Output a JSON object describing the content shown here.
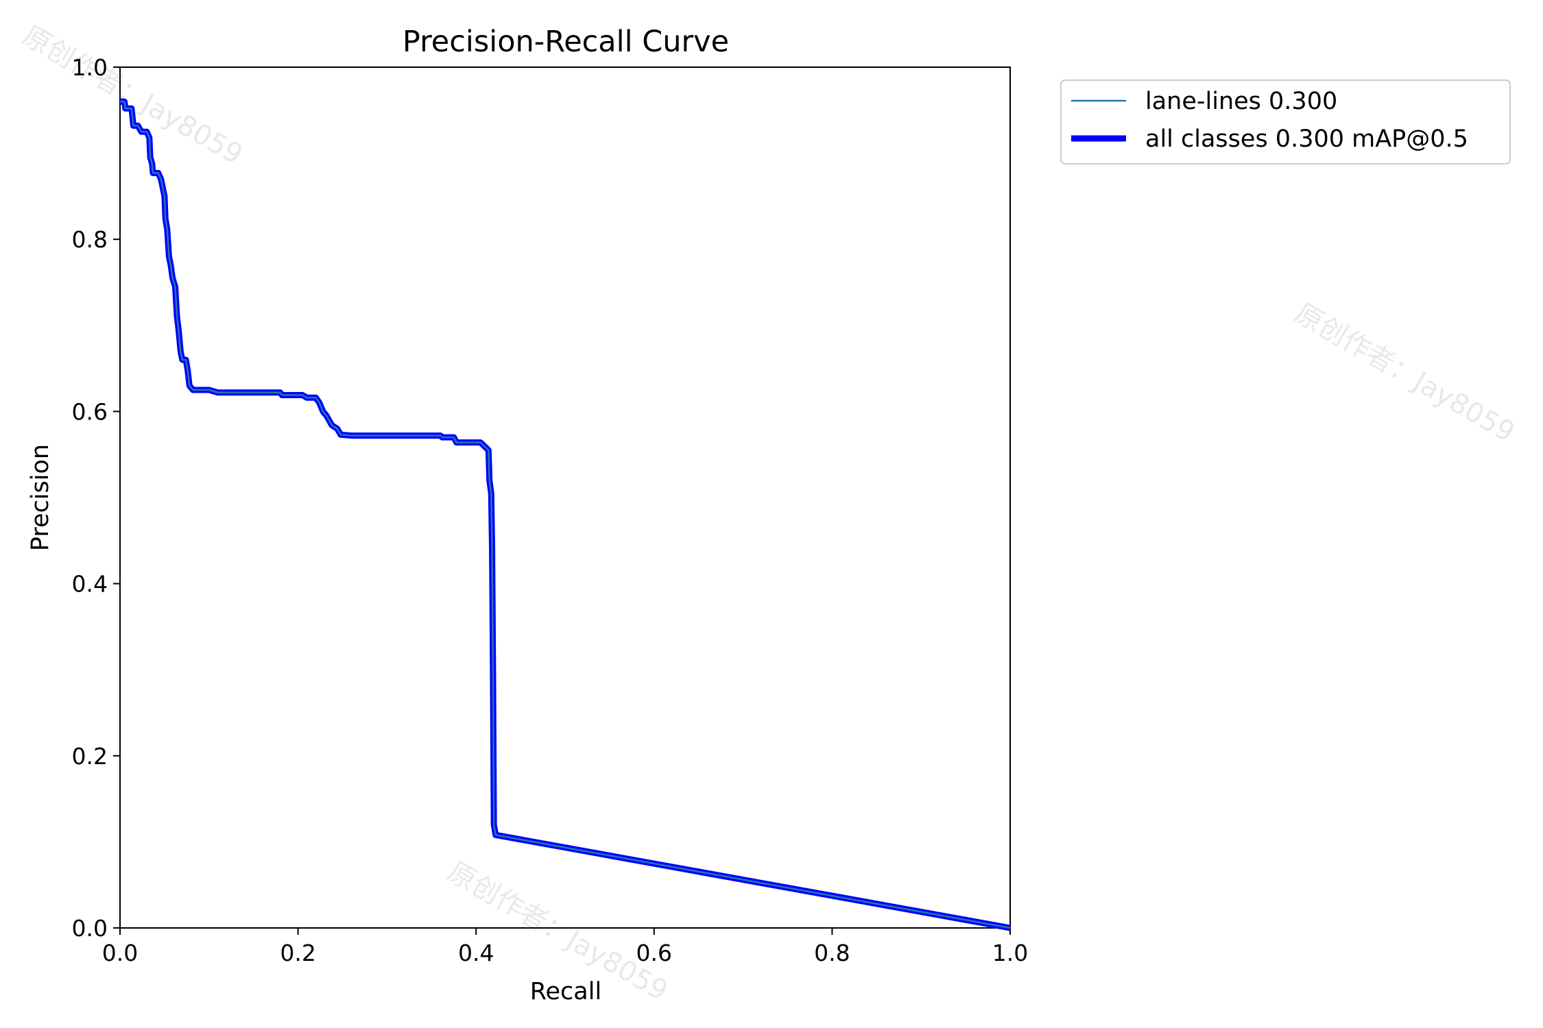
{
  "chart_data": {
    "type": "line",
    "title": "Precision-Recall Curve",
    "xlabel": "Recall",
    "ylabel": "Precision",
    "xlim": [
      0,
      1
    ],
    "ylim": [
      0,
      1
    ],
    "x_ticks": [
      "0.0",
      "0.2",
      "0.4",
      "0.6",
      "0.8",
      "1.0"
    ],
    "y_ticks": [
      "0.0",
      "0.2",
      "0.4",
      "0.6",
      "0.8",
      "1.0"
    ],
    "grid": false,
    "legend_position": "outside-upper-right",
    "series": [
      {
        "name": "lane-lines 0.300",
        "color": "#1f77b4",
        "style": "thin",
        "points": [
          [
            0.0,
            0.96
          ],
          [
            0.005,
            0.96
          ],
          [
            0.006,
            0.952
          ],
          [
            0.013,
            0.952
          ],
          [
            0.015,
            0.932
          ],
          [
            0.02,
            0.932
          ],
          [
            0.024,
            0.925
          ],
          [
            0.03,
            0.925
          ],
          [
            0.033,
            0.918
          ],
          [
            0.034,
            0.895
          ],
          [
            0.036,
            0.888
          ],
          [
            0.037,
            0.877
          ],
          [
            0.043,
            0.877
          ],
          [
            0.046,
            0.87
          ],
          [
            0.048,
            0.86
          ],
          [
            0.05,
            0.85
          ],
          [
            0.051,
            0.824
          ],
          [
            0.053,
            0.812
          ],
          [
            0.055,
            0.78
          ],
          [
            0.057,
            0.77
          ],
          [
            0.059,
            0.755
          ],
          [
            0.062,
            0.745
          ],
          [
            0.064,
            0.71
          ],
          [
            0.066,
            0.693
          ],
          [
            0.068,
            0.67
          ],
          [
            0.07,
            0.66
          ],
          [
            0.074,
            0.66
          ],
          [
            0.076,
            0.648
          ],
          [
            0.078,
            0.63
          ],
          [
            0.082,
            0.625
          ],
          [
            0.1,
            0.625
          ],
          [
            0.11,
            0.622
          ],
          [
            0.18,
            0.622
          ],
          [
            0.182,
            0.619
          ],
          [
            0.205,
            0.619
          ],
          [
            0.21,
            0.616
          ],
          [
            0.22,
            0.616
          ],
          [
            0.224,
            0.61
          ],
          [
            0.228,
            0.6
          ],
          [
            0.232,
            0.595
          ],
          [
            0.238,
            0.584
          ],
          [
            0.244,
            0.58
          ],
          [
            0.248,
            0.573
          ],
          [
            0.26,
            0.572
          ],
          [
            0.36,
            0.572
          ],
          [
            0.362,
            0.57
          ],
          [
            0.375,
            0.57
          ],
          [
            0.378,
            0.564
          ],
          [
            0.405,
            0.564
          ],
          [
            0.412,
            0.557
          ],
          [
            0.414,
            0.555
          ],
          [
            0.415,
            0.52
          ],
          [
            0.417,
            0.505
          ],
          [
            0.418,
            0.44
          ],
          [
            0.419,
            0.3
          ],
          [
            0.42,
            0.12
          ],
          [
            0.422,
            0.108
          ],
          [
            1.0,
            0.0
          ]
        ]
      },
      {
        "name": "all classes 0.300 mAP@0.5",
        "color": "#0000ff",
        "style": "thick",
        "same_as_series": 0
      }
    ]
  },
  "watermark": {
    "lines": [
      "原创作者：Jay8059",
      "原创作者：Jay8059",
      "原创作者：Jay8059"
    ]
  }
}
